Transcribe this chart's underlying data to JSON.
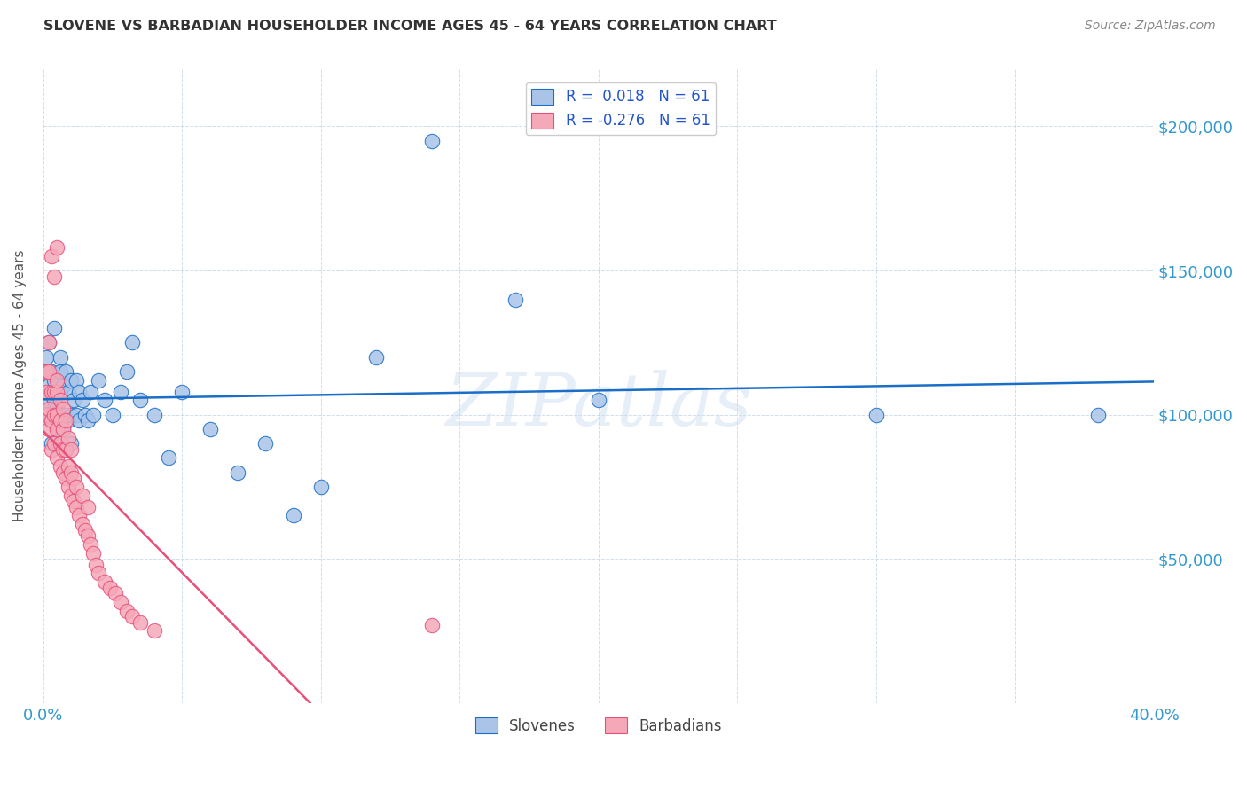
{
  "title": "SLOVENE VS BARBADIAN HOUSEHOLDER INCOME AGES 45 - 64 YEARS CORRELATION CHART",
  "source": "Source: ZipAtlas.com",
  "ylabel": "Householder Income Ages 45 - 64 years",
  "x_min": 0.0,
  "x_max": 0.4,
  "y_min": 0,
  "y_max": 220000,
  "x_ticks": [
    0.0,
    0.05,
    0.1,
    0.15,
    0.2,
    0.25,
    0.3,
    0.35,
    0.4
  ],
  "y_ticks": [
    0,
    50000,
    100000,
    150000,
    200000
  ],
  "y_tick_labels": [
    "",
    "$50,000",
    "$100,000",
    "$150,000",
    "$200,000"
  ],
  "slovene_color": "#aac4e8",
  "barbadian_color": "#f5a8b8",
  "slovene_line_color": "#1a6ec7",
  "barbadian_line_color": "#e8507a",
  "barbadian_dashed_color": "#ddb8c5",
  "legend_R_slovene": "R =  0.018   N = 61",
  "legend_R_barbadian": "R = -0.276   N = 61",
  "slovene_x": [
    0.001,
    0.001,
    0.001,
    0.002,
    0.002,
    0.002,
    0.003,
    0.003,
    0.003,
    0.003,
    0.004,
    0.004,
    0.004,
    0.005,
    0.005,
    0.005,
    0.006,
    0.006,
    0.006,
    0.006,
    0.007,
    0.007,
    0.008,
    0.008,
    0.008,
    0.009,
    0.009,
    0.01,
    0.01,
    0.01,
    0.011,
    0.012,
    0.012,
    0.013,
    0.013,
    0.014,
    0.015,
    0.016,
    0.017,
    0.018,
    0.02,
    0.022,
    0.025,
    0.028,
    0.03,
    0.032,
    0.035,
    0.04,
    0.045,
    0.05,
    0.06,
    0.07,
    0.08,
    0.09,
    0.1,
    0.12,
    0.14,
    0.17,
    0.2,
    0.3,
    0.38
  ],
  "slovene_y": [
    105000,
    115000,
    120000,
    100000,
    110000,
    125000,
    90000,
    98000,
    108000,
    115000,
    105000,
    112000,
    130000,
    95000,
    102000,
    108000,
    100000,
    108000,
    115000,
    120000,
    95000,
    110000,
    88000,
    100000,
    115000,
    98000,
    108000,
    90000,
    100000,
    112000,
    105000,
    100000,
    112000,
    98000,
    108000,
    105000,
    100000,
    98000,
    108000,
    100000,
    112000,
    105000,
    100000,
    108000,
    115000,
    125000,
    105000,
    100000,
    85000,
    108000,
    95000,
    80000,
    90000,
    65000,
    75000,
    120000,
    195000,
    140000,
    105000,
    100000,
    100000
  ],
  "barbadian_x": [
    0.001,
    0.001,
    0.001,
    0.002,
    0.002,
    0.002,
    0.002,
    0.003,
    0.003,
    0.003,
    0.003,
    0.004,
    0.004,
    0.004,
    0.004,
    0.005,
    0.005,
    0.005,
    0.005,
    0.005,
    0.005,
    0.006,
    0.006,
    0.006,
    0.006,
    0.007,
    0.007,
    0.007,
    0.007,
    0.008,
    0.008,
    0.008,
    0.009,
    0.009,
    0.009,
    0.01,
    0.01,
    0.01,
    0.011,
    0.011,
    0.012,
    0.012,
    0.013,
    0.014,
    0.014,
    0.015,
    0.016,
    0.016,
    0.017,
    0.018,
    0.019,
    0.02,
    0.022,
    0.024,
    0.026,
    0.028,
    0.03,
    0.032,
    0.035,
    0.04,
    0.14
  ],
  "barbadian_y": [
    100000,
    108000,
    115000,
    95000,
    102000,
    115000,
    125000,
    88000,
    98000,
    108000,
    155000,
    90000,
    100000,
    108000,
    148000,
    85000,
    95000,
    100000,
    108000,
    112000,
    158000,
    82000,
    90000,
    98000,
    105000,
    80000,
    88000,
    95000,
    102000,
    78000,
    88000,
    98000,
    75000,
    82000,
    92000,
    72000,
    80000,
    88000,
    70000,
    78000,
    68000,
    75000,
    65000,
    62000,
    72000,
    60000,
    58000,
    68000,
    55000,
    52000,
    48000,
    45000,
    42000,
    40000,
    38000,
    35000,
    32000,
    30000,
    28000,
    25000,
    27000
  ]
}
